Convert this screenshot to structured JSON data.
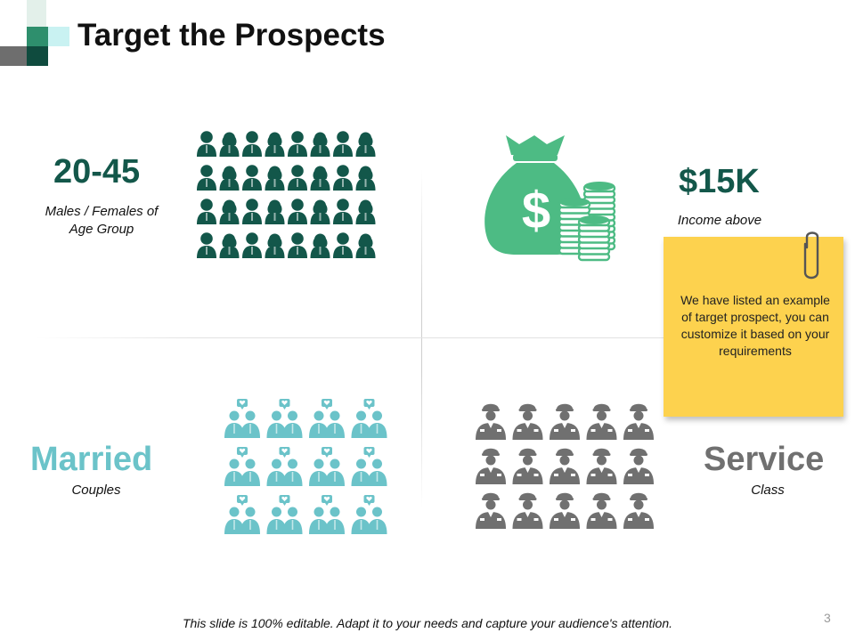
{
  "title": "Target the Prospects",
  "colors": {
    "dark_green": "#13574a",
    "green": "#4dbb84",
    "teal": "#6bc3c9",
    "grey": "#707070",
    "sticky": "#fdd24e"
  },
  "segments": {
    "age": {
      "value": "20-45",
      "caption_line1": "Males / Females of",
      "caption_line2": "Age Group",
      "icon": "people-group-icon"
    },
    "income": {
      "value": "$15K",
      "caption": "Income above",
      "icon": "money-bag-icon"
    },
    "married": {
      "value": "Married",
      "caption": "Couples",
      "icon": "couple-icon"
    },
    "service": {
      "value": "Service",
      "caption": "Class",
      "icon": "officer-icon"
    }
  },
  "note": {
    "text": "We have listed an example of target prospect, you can customize it based on your requirements",
    "icon": "paperclip-icon"
  },
  "footer": "This slide is 100% editable. Adapt it to your needs and capture your audience's attention.",
  "page_number": "3"
}
